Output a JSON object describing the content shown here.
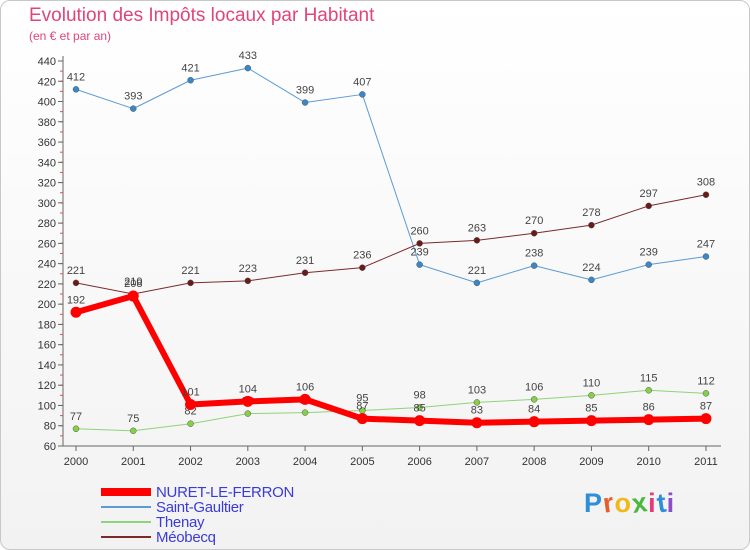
{
  "title": "Evolution des Impôts locaux par Habitant",
  "subtitle": "(en € et par an)",
  "logo": "Proxiti",
  "logo_colors": [
    "#2e8fd8",
    "#e85d2a",
    "#f0b818",
    "#4ab83c",
    "#e43a7a",
    "#2e8fd8",
    "#8c4fc8"
  ],
  "chart_data": {
    "type": "line",
    "x": [
      "2000",
      "2001",
      "2002",
      "2003",
      "2004",
      "2005",
      "2006",
      "2007",
      "2008",
      "2009",
      "2010",
      "2011"
    ],
    "ylim": [
      60,
      440
    ],
    "yticks": [
      60,
      80,
      100,
      120,
      140,
      160,
      180,
      200,
      220,
      240,
      260,
      280,
      300,
      320,
      340,
      360,
      380,
      400,
      420,
      440
    ],
    "grid": false,
    "legend": "bottom-left",
    "series": [
      {
        "name": "Saint-Gaultier",
        "color": "#5b9bd5",
        "point_color": "#3a87c8",
        "width": 1,
        "values": [
          412,
          393,
          421,
          433,
          399,
          407,
          239,
          221,
          238,
          224,
          239,
          247
        ]
      },
      {
        "name": "Thenay",
        "color": "#8fd37a",
        "point_color": "#86d048",
        "width": 1,
        "values": [
          77,
          75,
          82,
          92,
          93,
          95,
          98,
          103,
          106,
          110,
          115,
          112
        ]
      },
      {
        "name": "Méobecq",
        "color": "#7a2b2b",
        "point_color": "#6b1a1a",
        "width": 1,
        "values": [
          221,
          210,
          221,
          223,
          231,
          236,
          260,
          263,
          270,
          278,
          297,
          308
        ]
      },
      {
        "name": "NURET-LE-FERRON",
        "color": "#ff0000",
        "point_color": "#ff0000",
        "width": 6,
        "values": [
          192,
          208,
          101,
          104,
          106,
          87,
          85,
          83,
          84,
          85,
          86,
          87
        ]
      }
    ],
    "legend_order": [
      "NURET-LE-FERRON",
      "Saint-Gaultier",
      "Thenay",
      "Méobecq"
    ]
  }
}
